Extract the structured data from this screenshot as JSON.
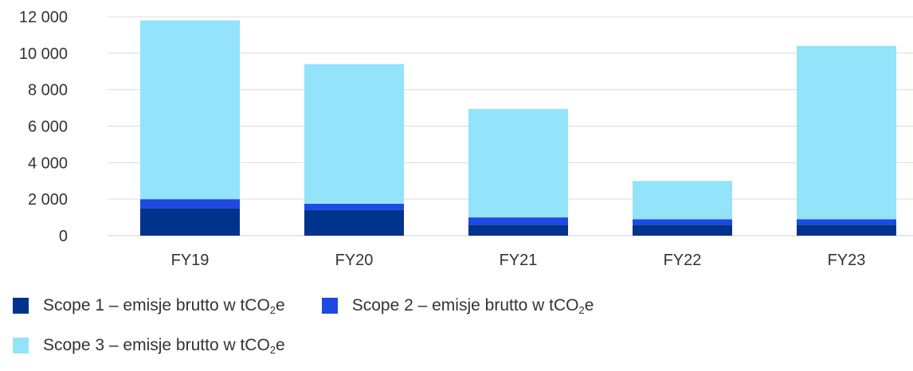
{
  "chart_data": {
    "type": "bar",
    "stacked": true,
    "title": "",
    "xlabel": "",
    "ylabel": "",
    "categories": [
      "FY19",
      "FY20",
      "FY21",
      "FY22",
      "FY23"
    ],
    "ylim": [
      0,
      12000
    ],
    "yticks": [
      0,
      2000,
      4000,
      6000,
      8000,
      10000,
      12000
    ],
    "ytick_labels": [
      "0",
      "2 000",
      "4 000",
      "6 000",
      "8 000",
      "10 000",
      "12 000"
    ],
    "grid": true,
    "legend_position": "bottom-left",
    "series": [
      {
        "name_prefix": "Scope 1 – emisje brutto w tCO",
        "name_sub": "2",
        "name_suffix": "e",
        "color": "#00338d",
        "values": [
          1500,
          1400,
          600,
          600,
          600
        ]
      },
      {
        "name_prefix": "Scope 2 – emisje brutto w tCO",
        "name_sub": "2",
        "name_suffix": "e",
        "color": "#1e49e2",
        "values": [
          500,
          350,
          400,
          300,
          300
        ]
      },
      {
        "name_prefix": "Scope 3 – emisje brutto w tCO",
        "name_sub": "2",
        "name_suffix": "e",
        "color": "#93e3fb",
        "values": [
          9800,
          7650,
          5950,
          2100,
          9500
        ]
      }
    ]
  }
}
